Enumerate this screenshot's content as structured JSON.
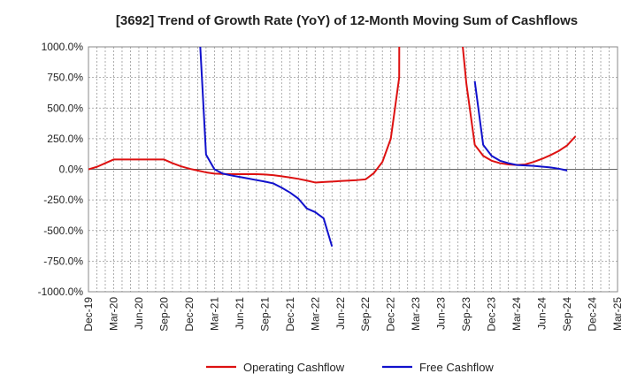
{
  "chart_data": {
    "type": "line",
    "title": "[3692]  Trend of Growth Rate (YoY) of 12-Month Moving Sum of Cashflows",
    "xlabel": "",
    "ylabel": "",
    "ylim": [
      -1000,
      1000
    ],
    "y_ticks": [
      -1000,
      -750,
      -500,
      -250,
      0,
      250,
      500,
      750,
      1000
    ],
    "y_tick_labels": [
      "-1000.0%",
      "-750.0%",
      "-500.0%",
      "-250.0%",
      "0.0%",
      "250.0%",
      "500.0%",
      "750.0%",
      "1000.0%"
    ],
    "x_ticks": [
      "Dec-19",
      "Mar-20",
      "Jun-20",
      "Sep-20",
      "Dec-20",
      "Mar-21",
      "Jun-21",
      "Sep-21",
      "Dec-21",
      "Mar-22",
      "Jun-22",
      "Sep-22",
      "Dec-22",
      "Mar-23",
      "Jun-23",
      "Sep-23",
      "Dec-23",
      "Mar-24",
      "Jun-24",
      "Sep-24",
      "Dec-24",
      "Mar-25"
    ],
    "grid": true,
    "legend_position": "bottom-center",
    "series": [
      {
        "name": "Operating Cashflow",
        "color": "#dd1111",
        "points": [
          [
            "Dec-19",
            0
          ],
          [
            "Jan-20",
            20
          ],
          [
            "Feb-20",
            50
          ],
          [
            "Mar-20",
            80
          ],
          [
            "Apr-20",
            80
          ],
          [
            "May-20",
            80
          ],
          [
            "Jun-20",
            80
          ],
          [
            "Jul-20",
            80
          ],
          [
            "Aug-20",
            80
          ],
          [
            "Sep-20",
            80
          ],
          [
            "Oct-20",
            50
          ],
          [
            "Nov-20",
            25
          ],
          [
            "Dec-20",
            5
          ],
          [
            "Jan-21",
            -10
          ],
          [
            "Feb-21",
            -25
          ],
          [
            "Mar-21",
            -35
          ],
          [
            "Apr-21",
            -38
          ],
          [
            "May-21",
            -40
          ],
          [
            "Jun-21",
            -40
          ],
          [
            "Jul-21",
            -40
          ],
          [
            "Aug-21",
            -40
          ],
          [
            "Sep-21",
            -42
          ],
          [
            "Oct-21",
            -48
          ],
          [
            "Nov-21",
            -57
          ],
          [
            "Dec-21",
            -67
          ],
          [
            "Jan-22",
            -78
          ],
          [
            "Feb-22",
            -92
          ],
          [
            "Mar-22",
            -108
          ],
          [
            "Apr-22",
            -104
          ],
          [
            "May-22",
            -100
          ],
          [
            "Jun-22",
            -96
          ],
          [
            "Jul-22",
            -92
          ],
          [
            "Aug-22",
            -88
          ],
          [
            "Sep-22",
            -82
          ],
          [
            "Oct-22",
            -30
          ],
          [
            "Nov-22",
            60
          ],
          [
            "Dec-22",
            250
          ],
          [
            "Jan-23",
            750
          ],
          [
            "Jan-23b",
            1400
          ]
        ],
        "points_2": [
          [
            "Aug-23",
            1400
          ],
          [
            "Sep-23",
            700
          ],
          [
            "Oct-23",
            200
          ],
          [
            "Nov-23",
            110
          ],
          [
            "Dec-23",
            70
          ],
          [
            "Jan-24",
            50
          ],
          [
            "Feb-24",
            40
          ],
          [
            "Mar-24",
            35
          ],
          [
            "Apr-24",
            40
          ],
          [
            "May-24",
            60
          ],
          [
            "Jun-24",
            85
          ],
          [
            "Jul-24",
            115
          ],
          [
            "Aug-24",
            150
          ],
          [
            "Sep-24",
            195
          ],
          [
            "Oct-24",
            270
          ]
        ]
      },
      {
        "name": "Free Cashflow",
        "color": "#1111cc",
        "points": [
          [
            "Jan-21",
            1400
          ],
          [
            "Feb-21",
            120
          ],
          [
            "Mar-21",
            0
          ],
          [
            "Apr-21",
            -35
          ],
          [
            "May-21",
            -50
          ],
          [
            "Jun-21",
            -62
          ],
          [
            "Jul-21",
            -75
          ],
          [
            "Aug-21",
            -88
          ],
          [
            "Sep-21",
            -100
          ],
          [
            "Oct-21",
            -115
          ],
          [
            "Nov-21",
            -150
          ],
          [
            "Dec-21",
            -190
          ],
          [
            "Jan-22",
            -240
          ],
          [
            "Feb-22",
            -320
          ],
          [
            "Mar-22",
            -350
          ],
          [
            "Apr-22",
            -400
          ],
          [
            "May-22",
            -630
          ]
        ],
        "points_2": [
          [
            "Oct-23",
            720
          ],
          [
            "Nov-23",
            200
          ],
          [
            "Dec-23",
            110
          ],
          [
            "Jan-24",
            70
          ],
          [
            "Feb-24",
            50
          ],
          [
            "Mar-24",
            35
          ],
          [
            "Apr-24",
            32
          ],
          [
            "May-24",
            28
          ],
          [
            "Jun-24",
            22
          ],
          [
            "Jul-24",
            15
          ],
          [
            "Aug-24",
            5
          ],
          [
            "Sep-24",
            -10
          ]
        ]
      }
    ]
  }
}
